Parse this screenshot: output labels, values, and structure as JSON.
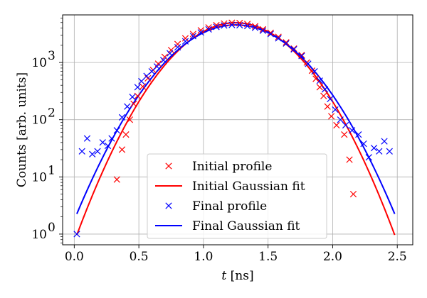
{
  "chart_data": {
    "type": "scatter",
    "xlabel_var": "t",
    "xlabel_unit": " [ns]",
    "ylabel": "Counts [arb. units]",
    "xlim": [
      -0.09,
      2.62
    ],
    "ylim": [
      0.65,
      6800
    ],
    "yscale": "log",
    "grid": true,
    "legend_position": "lower center",
    "x_ticks": [
      0.0,
      0.5,
      1.0,
      1.5,
      2.0,
      2.5
    ],
    "x_tick_labels": [
      "0.0",
      "0.5",
      "1.0",
      "1.5",
      "2.0",
      "2.5"
    ],
    "y_ticks": [
      1,
      10,
      100,
      1000
    ],
    "y_tick_labels": [
      "10",
      "10",
      "10",
      "10"
    ],
    "y_tick_exponents": [
      "0",
      "1",
      "2",
      "3"
    ],
    "series": [
      {
        "name": "Initial profile",
        "kind": "markers",
        "marker": "x",
        "color": "#ff0000",
        "points": [
          [
            0.33,
            9
          ],
          [
            0.37,
            30
          ],
          [
            0.4,
            55
          ],
          [
            0.43,
            100
          ],
          [
            0.46,
            190
          ],
          [
            0.49,
            260
          ],
          [
            0.53,
            380
          ],
          [
            0.57,
            530
          ],
          [
            0.61,
            740
          ],
          [
            0.65,
            950
          ],
          [
            0.7,
            1250
          ],
          [
            0.75,
            1650
          ],
          [
            0.8,
            2100
          ],
          [
            0.86,
            2650
          ],
          [
            0.92,
            3150
          ],
          [
            0.98,
            3650
          ],
          [
            1.04,
            4100
          ],
          [
            1.1,
            4500
          ],
          [
            1.16,
            4800
          ],
          [
            1.22,
            4950
          ],
          [
            1.28,
            4900
          ],
          [
            1.34,
            4700
          ],
          [
            1.4,
            4300
          ],
          [
            1.46,
            3800
          ],
          [
            1.52,
            3300
          ],
          [
            1.58,
            2800
          ],
          [
            1.64,
            2250
          ],
          [
            1.7,
            1750
          ],
          [
            1.76,
            1350
          ],
          [
            1.8,
            1000
          ],
          [
            1.84,
            720
          ],
          [
            1.87,
            520
          ],
          [
            1.9,
            370
          ],
          [
            1.93,
            260
          ],
          [
            1.96,
            170
          ],
          [
            1.99,
            115
          ],
          [
            2.03,
            80
          ],
          [
            2.09,
            55
          ],
          [
            2.13,
            20
          ],
          [
            2.16,
            5
          ]
        ]
      },
      {
        "name": "Initial Gaussian fit",
        "kind": "line",
        "color": "#ff0000",
        "amplitude": 4950,
        "center": 1.25,
        "sigma": 0.2976,
        "x_range": [
          0.02,
          2.48
        ]
      },
      {
        "name": "Final profile",
        "kind": "markers",
        "marker": "x",
        "color": "#0000ff",
        "points": [
          [
            0.02,
            1
          ],
          [
            0.06,
            28
          ],
          [
            0.1,
            47
          ],
          [
            0.14,
            25
          ],
          [
            0.18,
            28
          ],
          [
            0.22,
            40
          ],
          [
            0.26,
            35
          ],
          [
            0.29,
            47
          ],
          [
            0.33,
            65
          ],
          [
            0.37,
            110
          ],
          [
            0.41,
            170
          ],
          [
            0.45,
            250
          ],
          [
            0.49,
            370
          ],
          [
            0.52,
            470
          ],
          [
            0.56,
            580
          ],
          [
            0.6,
            700
          ],
          [
            0.64,
            850
          ],
          [
            0.69,
            1100
          ],
          [
            0.74,
            1450
          ],
          [
            0.8,
            1850
          ],
          [
            0.86,
            2350
          ],
          [
            0.92,
            2900
          ],
          [
            0.98,
            3350
          ],
          [
            1.04,
            3800
          ],
          [
            1.1,
            4200
          ],
          [
            1.16,
            4450
          ],
          [
            1.22,
            4550
          ],
          [
            1.28,
            4500
          ],
          [
            1.34,
            4350
          ],
          [
            1.4,
            4050
          ],
          [
            1.46,
            3600
          ],
          [
            1.52,
            3150
          ],
          [
            1.58,
            2650
          ],
          [
            1.64,
            2150
          ],
          [
            1.7,
            1700
          ],
          [
            1.76,
            1300
          ],
          [
            1.81,
            950
          ],
          [
            1.86,
            700
          ],
          [
            1.9,
            480
          ],
          [
            1.94,
            340
          ],
          [
            1.98,
            230
          ],
          [
            2.02,
            150
          ],
          [
            2.06,
            100
          ],
          [
            2.1,
            80
          ],
          [
            2.15,
            65
          ],
          [
            2.2,
            55
          ],
          [
            2.24,
            38
          ],
          [
            2.28,
            22
          ],
          [
            2.32,
            32
          ],
          [
            2.36,
            28
          ],
          [
            2.4,
            42
          ],
          [
            2.44,
            28
          ]
        ]
      },
      {
        "name": "Final Gaussian fit",
        "kind": "line",
        "color": "#0000ff",
        "amplitude": 4550,
        "center": 1.25,
        "sigma": 0.3153,
        "x_range": [
          0.02,
          2.48
        ]
      }
    ]
  }
}
